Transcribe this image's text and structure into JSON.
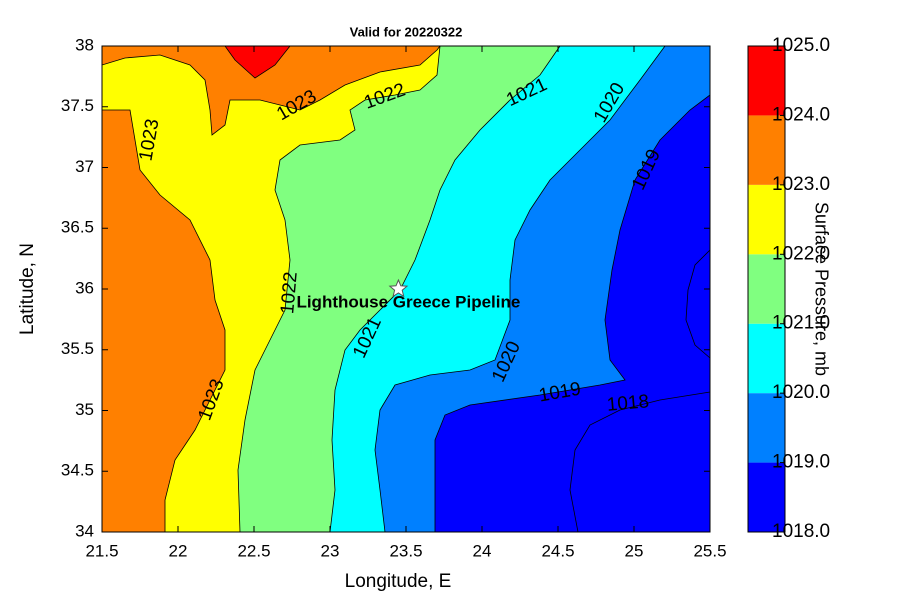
{
  "chart_data": {
    "type": "contour",
    "title": "Valid for 20220322",
    "xlabel": "Longitude, E",
    "ylabel": "Latitude, N",
    "xlim": [
      21.5,
      25.5
    ],
    "ylim": [
      34,
      38
    ],
    "xticks": [
      21.5,
      22,
      22.5,
      23,
      23.5,
      24,
      24.5,
      25,
      25.5
    ],
    "yticks": [
      34,
      34.5,
      35,
      35.5,
      36,
      36.5,
      37,
      37.5,
      38
    ],
    "colorbar_label": "Surface Pressure, mb",
    "colorbar_ticks": [
      {
        "value": 1018,
        "label": "1018.0"
      },
      {
        "value": 1019,
        "label": "1019.0"
      },
      {
        "value": 1020,
        "label": "1020.0"
      },
      {
        "value": 1021,
        "label": "1021.0"
      },
      {
        "value": 1022,
        "label": "1022.0"
      },
      {
        "value": 1023,
        "label": "1023.0"
      },
      {
        "value": 1024,
        "label": "1024.0"
      },
      {
        "value": 1025,
        "label": "1025.0"
      }
    ],
    "colorbar_colors": [
      "#0000ff",
      "#0080ff",
      "#00ffff",
      "#80ff80",
      "#ffff00",
      "#ff8000",
      "#ff0000"
    ],
    "contour_labels": [
      1023,
      1023,
      1022,
      1021,
      1020,
      1019,
      1022,
      1021,
      1020,
      1019,
      1018,
      1023
    ],
    "marker": {
      "label": "Lighthouse Greece Pipeline",
      "x": 23.45,
      "y": 36.0
    }
  }
}
